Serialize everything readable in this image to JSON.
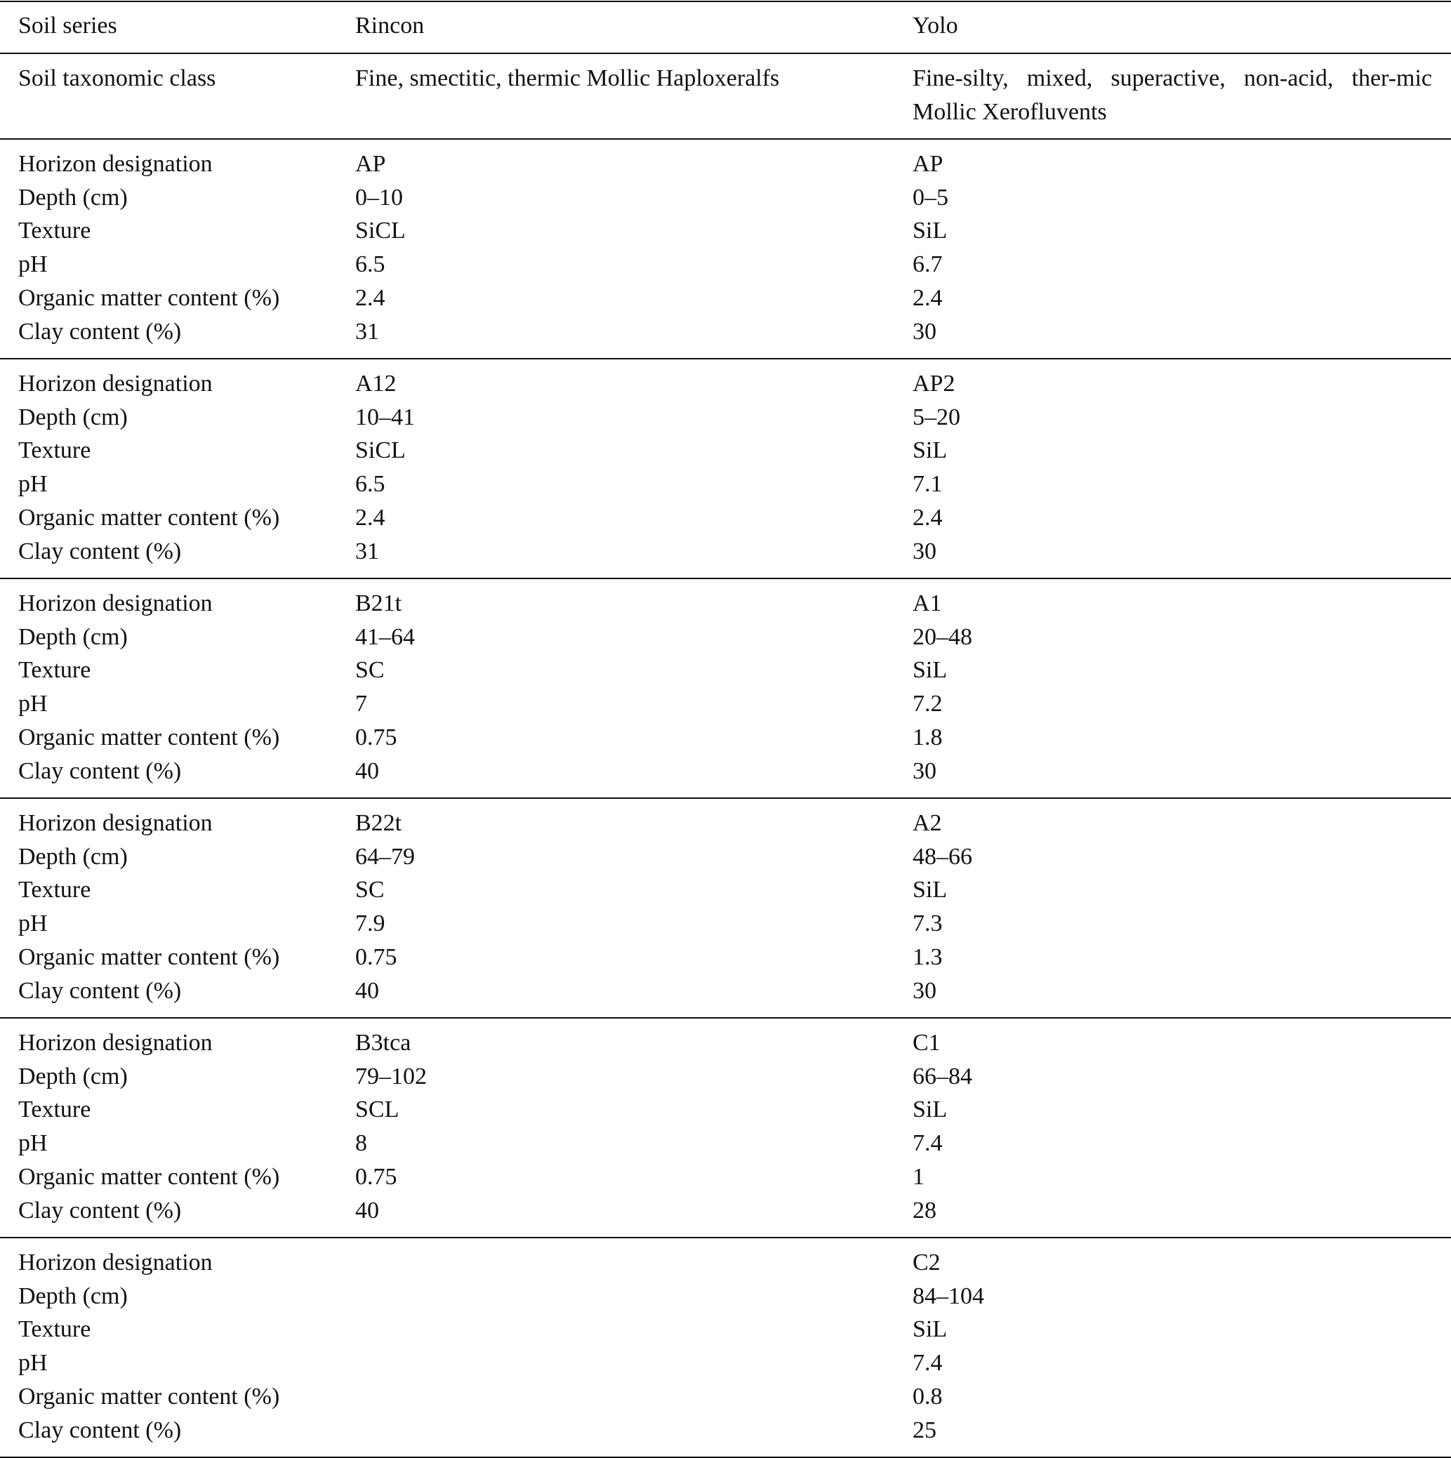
{
  "header": {
    "label": "Soil series",
    "rincon": "Rincon",
    "yolo": "Yolo"
  },
  "taxonomy": {
    "label": "Soil taxonomic class",
    "rincon": "Fine, smectitic, thermic Mollic Haploxeralfs",
    "yolo": "Fine-silty, mixed, superactive, non-acid, ther-mic Mollic Xerofluvents"
  },
  "row_labels": [
    "Horizon designation",
    "Depth (cm)",
    "Texture",
    "pH",
    "Organic matter content (%)",
    "Clay content (%)"
  ],
  "horizons": [
    {
      "rincon": [
        "AP",
        "0–10",
        "SiCL",
        "6.5",
        "2.4",
        "31"
      ],
      "yolo": [
        "AP",
        "0–5",
        "SiL",
        "6.7",
        "2.4",
        "30"
      ]
    },
    {
      "rincon": [
        "A12",
        "10–41",
        "SiCL",
        "6.5",
        "2.4",
        "31"
      ],
      "yolo": [
        "AP2",
        "5–20",
        "SiL",
        "7.1",
        "2.4",
        "30"
      ]
    },
    {
      "rincon": [
        "B21t",
        "41–64",
        "SC",
        "7",
        "0.75",
        "40"
      ],
      "yolo": [
        "A1",
        "20–48",
        "SiL",
        "7.2",
        "1.8",
        "30"
      ]
    },
    {
      "rincon": [
        "B22t",
        "64–79",
        "SC",
        "7.9",
        "0.75",
        "40"
      ],
      "yolo": [
        "A2",
        "48–66",
        "SiL",
        "7.3",
        "1.3",
        "30"
      ]
    },
    {
      "rincon": [
        "B3tca",
        "79–102",
        "SCL",
        "8",
        "0.75",
        "40"
      ],
      "yolo": [
        "C1",
        "66–84",
        "SiL",
        "7.4",
        "1",
        "28"
      ]
    },
    {
      "rincon": [
        "",
        "",
        "",
        "",
        "",
        ""
      ],
      "yolo": [
        "C2",
        "84–104",
        "SiL",
        "7.4",
        "0.8",
        "25"
      ]
    }
  ]
}
